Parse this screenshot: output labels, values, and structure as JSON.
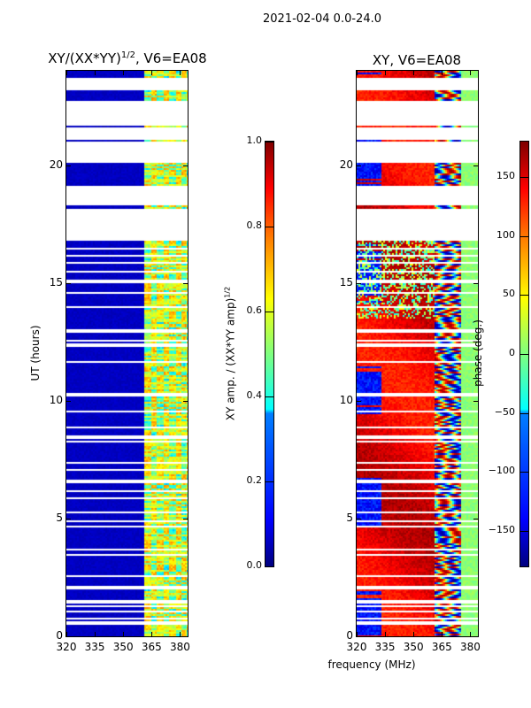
{
  "suptitle": "2021-02-04 0.0-24.0",
  "chart_data": [
    {
      "type": "heatmap",
      "title": "XY/(XX*YY)",
      "title_sup": "1/2",
      "title_suffix": ", V6=EA08",
      "xlabel": "frequency (MHz)",
      "ylabel": "UT (hours)",
      "xlim": [
        320,
        384
      ],
      "ylim": [
        0,
        24
      ],
      "xticks": [
        "320",
        "335",
        "350",
        "365",
        "380"
      ],
      "yticks": [
        "0",
        "5",
        "10",
        "15",
        "20"
      ],
      "colormap": "jet",
      "colorbar": {
        "label": "XY amp. / (XX*YY amp)",
        "label_sup": "1/2",
        "range": [
          0,
          1
        ],
        "ticks": [
          "0.0",
          "0.2",
          "0.4",
          "0.6",
          "0.8",
          "1.0"
        ]
      },
      "valid_time_ranges": [
        [
          0,
          16.85
        ],
        [
          18.17,
          18.36
        ],
        [
          19.14,
          20.12
        ],
        [
          21.02,
          21.1
        ],
        [
          21.66,
          21.73
        ],
        [
          22.75,
          23.2
        ],
        [
          23.72,
          24
        ]
      ],
      "flagged_hours": [
        0.6,
        0.8,
        1.1,
        1.3,
        1.5,
        2.1,
        2.6,
        3.5,
        3.7,
        4.7,
        4.9,
        5.3,
        5.9,
        6.2,
        6.6,
        7.1,
        7.4,
        8.3,
        8.5,
        8.9,
        9.6,
        10.3,
        11.7,
        12.4,
        12.6,
        13.0,
        14.0,
        14.6,
        15.1,
        15.5,
        15.9,
        16.2,
        16.5
      ],
      "description_low_band": {
        "freq_range": [
          320,
          361
        ],
        "typical_value": 0.05
      },
      "description_high_band": {
        "freq_range": [
          361,
          384
        ],
        "typical_value_range": [
          0.3,
          0.7
        ]
      }
    },
    {
      "type": "heatmap",
      "title": "XY, V6=EA08",
      "xlabel": "frequency (MHz)",
      "ylabel": "",
      "xlim": [
        320,
        384
      ],
      "ylim": [
        0,
        24
      ],
      "xticks": [
        "320",
        "335",
        "350",
        "365",
        "380"
      ],
      "yticks": [
        "0",
        "5",
        "10",
        "15",
        "20"
      ],
      "colormap": "jet",
      "colorbar": {
        "label": "phase (deg.)",
        "range": [
          -180,
          180
        ],
        "ticks": [
          "−150",
          "−100",
          "−50",
          "0",
          "50",
          "100",
          "150"
        ]
      },
      "typical_phase_low_band": 130,
      "typical_phase_high_band": 0
    }
  ]
}
